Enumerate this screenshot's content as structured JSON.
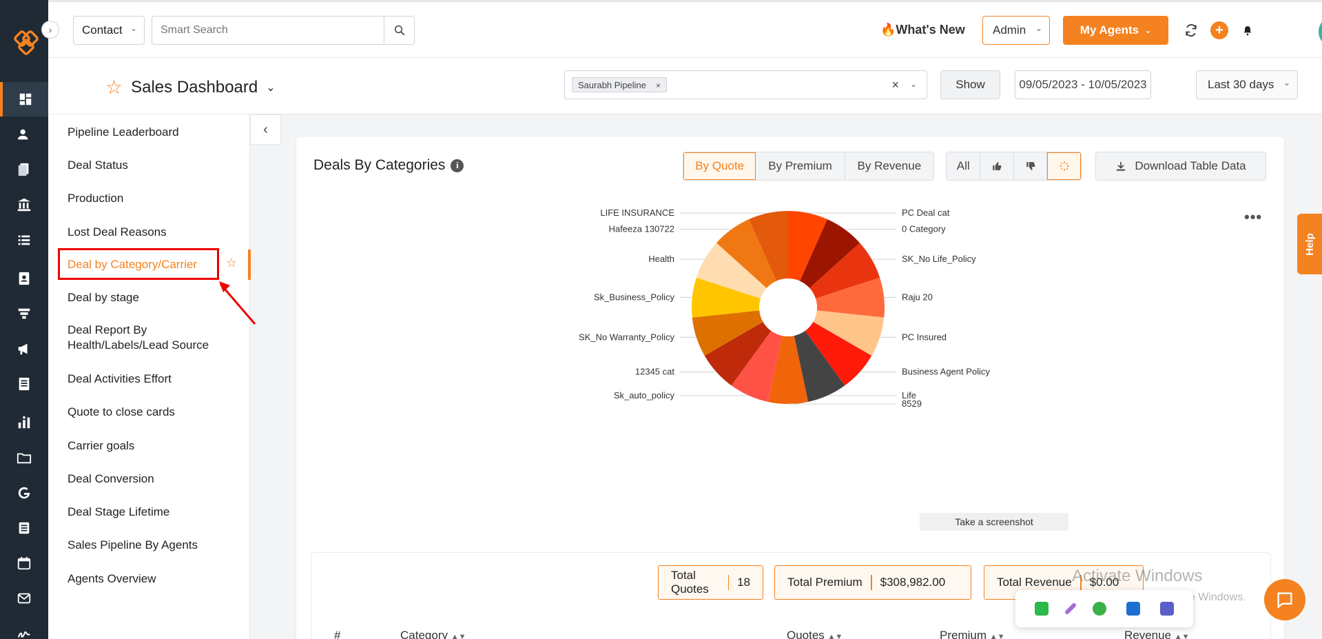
{
  "header": {
    "search_type": "Contact",
    "search_placeholder": "Smart Search",
    "whats_new": "What's New",
    "role": "Admin",
    "my_agents": "My Agents"
  },
  "dashboard": {
    "title": "Sales Dashboard",
    "pipeline_tag": "Saurabh Pipeline",
    "show_label": "Show",
    "date_range": "09/05/2023 - 10/05/2023",
    "period": "Last 30 days"
  },
  "report_menu": {
    "items": [
      "Pipeline Leaderboard",
      "Deal Status",
      "Production",
      "Lost Deal Reasons",
      "Deal by Category/Carrier",
      "Deal by stage",
      "Deal Report By",
      "Health/Labels/Lead Source",
      "Deal Activities Effort",
      "Quote to close cards",
      "Carrier goals",
      "Deal Conversion",
      "Deal Stage Lifetime",
      "Sales Pipeline By Agents",
      "Agents Overview"
    ]
  },
  "card": {
    "title": "Deals By Categories",
    "metric_tabs": [
      "By Quote",
      "By Premium",
      "By Revenue"
    ],
    "filter_all": "All",
    "download_label": "Download Table Data",
    "screenshot_tip": "Take a screenshot"
  },
  "chart_data": {
    "type": "pie",
    "donut": true,
    "slices": [
      {
        "label": "PC Deal cat",
        "value": 1,
        "color": "#FF4500"
      },
      {
        "label": "0 Category",
        "value": 1,
        "color": "#9C1500"
      },
      {
        "label": "SK_No Life_Policy",
        "value": 1,
        "color": "#E83510"
      },
      {
        "label": "Raju 20",
        "value": 1,
        "color": "#FF6A3D"
      },
      {
        "label": "PC Insured",
        "value": 1,
        "color": "#FFC48A"
      },
      {
        "label": "Business Agent Policy",
        "value": 1,
        "color": "#FF1A0A"
      },
      {
        "label": "Life",
        "value": 1,
        "color": "#444444"
      },
      {
        "label": "8529",
        "value": 1,
        "color": "#F0640A"
      },
      {
        "label": "Sk_auto_policy",
        "value": 1,
        "color": "#FF5247"
      },
      {
        "label": "12345 cat",
        "value": 1,
        "color": "#BE2A0A"
      },
      {
        "label": "SK_No Warranty_Policy",
        "value": 1,
        "color": "#DE7000"
      },
      {
        "label": "Sk_Business_Policy",
        "value": 1,
        "color": "#FFC600"
      },
      {
        "label": "Health",
        "value": 1,
        "color": "#FFDDB0"
      },
      {
        "label": "Hafeeza 130722",
        "value": 1,
        "color": "#F07814"
      },
      {
        "label": "LIFE INSURANCE",
        "value": 1,
        "color": "#E45A0C"
      }
    ]
  },
  "totals": {
    "quotes_label": "Total Quotes",
    "quotes_value": "18",
    "premium_label": "Total Premium",
    "premium_value": "$308,982.00",
    "revenue_label": "Total Revenue",
    "revenue_value": "$0.00"
  },
  "table": {
    "columns": [
      "#",
      "Category",
      "Quotes",
      "Premium",
      "Revenue"
    ]
  },
  "overlay": {
    "help": "Help",
    "activate_title": "Activate Windows",
    "activate_sub": "Go to Settings to activate Windows."
  }
}
